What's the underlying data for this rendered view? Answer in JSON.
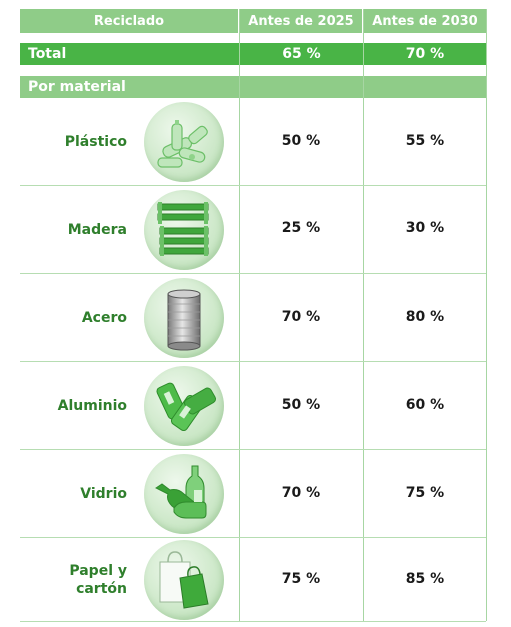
{
  "header": {
    "col_reciclado": "Reciclado",
    "col_2025": "Antes de 2025",
    "col_2030": "Antes de 2030"
  },
  "total": {
    "label": "Total",
    "v2025": "65 %",
    "v2030": "70 %"
  },
  "section": {
    "label": "Por material"
  },
  "rows": [
    {
      "label": "Plástico",
      "icon": "plastic-bottles-icon",
      "v2025": "50 %",
      "v2030": "55 %"
    },
    {
      "label": "Madera",
      "icon": "wooden-crates-icon",
      "v2025": "25 %",
      "v2030": "30 %"
    },
    {
      "label": "Acero",
      "icon": "steel-can-icon",
      "v2025": "70 %",
      "v2030": "80 %"
    },
    {
      "label": "Aluminio",
      "icon": "aluminium-cans-icon",
      "v2025": "50 %",
      "v2030": "60 %"
    },
    {
      "label": "Vidrio",
      "icon": "glass-bottles-icon",
      "v2025": "70 %",
      "v2030": "75 %"
    },
    {
      "label_line1": "Papel y",
      "label_line2": "cartón",
      "icon": "paper-bags-icon",
      "v2025": "75 %",
      "v2030": "85 %"
    }
  ],
  "colors": {
    "header_green": "#8fcc88",
    "total_green": "#49b446",
    "label_green": "#2f7f2c",
    "icon_green": "#5cb85a"
  }
}
